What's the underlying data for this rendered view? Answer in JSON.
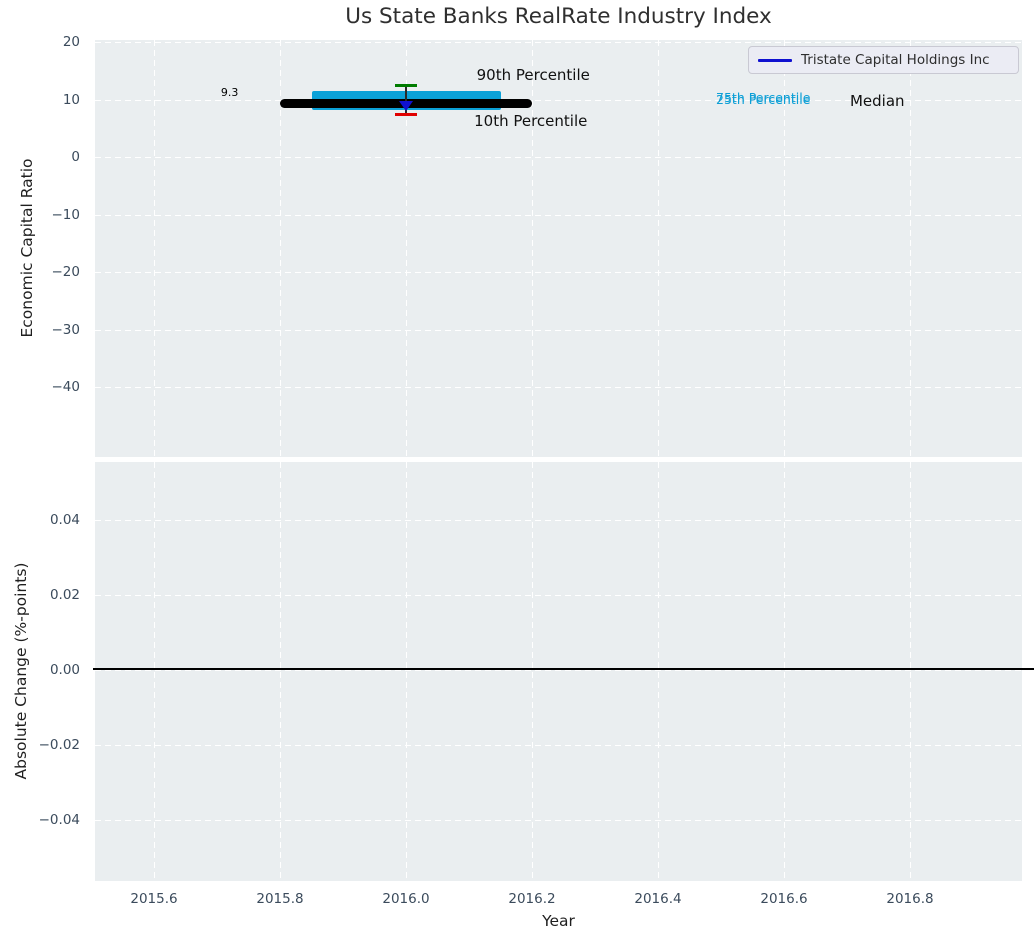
{
  "title": "Us State Banks RealRate Industry Index",
  "axis_labels": {
    "top_y": "Economic Capital Ratio",
    "bottom_y": "Absolute Change (%-points)",
    "x": "Year"
  },
  "legend": {
    "label": "Tristate Capital Holdings Inc",
    "line_color": "#0f10d0"
  },
  "colors": {
    "axes_bg": "#eaeef0",
    "grid": "#ffffff",
    "tick_text": "#3b4b5c",
    "median_line": "#000000",
    "iqr_band": "#0ba1d8",
    "p90_cap": "#007c00",
    "p10_cap": "#e00000",
    "company_marker": "#0f10d0",
    "percentile_label": "#0d9fd6",
    "zero_line": "#000000"
  },
  "chart_data": [
    {
      "type": "line",
      "title": "Us State Banks RealRate Industry Index",
      "xlabel": "Year",
      "ylabel": "Economic Capital Ratio",
      "xlim": [
        2015.506,
        2016.978
      ],
      "ylim": [
        -52.1,
        20.4
      ],
      "xticks": [
        2015.6,
        2015.8,
        2016.0,
        2016.2,
        2016.4,
        2016.6,
        2016.8
      ],
      "yticks": [
        20,
        10,
        0,
        -10,
        -20,
        -30,
        -40
      ],
      "grid": true,
      "grid_style": "dashed",
      "legend_entries": [
        "Tristate Capital Holdings Inc"
      ],
      "legend_position": "upper right",
      "series": [
        {
          "name": "Tristate Capital Holdings Inc",
          "x": [
            2016.0
          ],
          "y": [
            8.9
          ],
          "marker": "triangle-down",
          "color": "#0f10d0"
        }
      ],
      "industry_percentiles": {
        "x": 2016.0,
        "median": 9.3,
        "median_x_span": [
          2015.8,
          2016.2
        ],
        "p25": 8.1,
        "p75": 11.5,
        "band_x_span": [
          2015.85,
          2016.15
        ],
        "p10": 7.4,
        "p90": 12.3
      },
      "annotations": [
        {
          "text": "9.3",
          "x": 2015.72,
          "y": 11.1,
          "color": "#000000",
          "size": 11
        },
        {
          "text": "90th Percentile",
          "x": 2016.202,
          "y": 14.3,
          "color": "#111111",
          "size": 15
        },
        {
          "text": "10th Percentile",
          "x": 2016.198,
          "y": 6.3,
          "color": "#111111",
          "size": 15
        },
        {
          "text": "75th Percentile",
          "x": 2016.567,
          "y": 10.3,
          "color": "#0d9fd6",
          "size": 12.5
        },
        {
          "text": "25th Percentile",
          "x": 2016.567,
          "y": 9.9,
          "color": "#0d9fd6",
          "size": 12.5
        },
        {
          "text": "Median",
          "x": 2016.748,
          "y": 9.7,
          "color": "#111111",
          "size": 15
        }
      ]
    },
    {
      "type": "line",
      "title": "",
      "xlabel": "Year",
      "ylabel": "Absolute Change (%-points)",
      "xlim": [
        2015.506,
        2016.978
      ],
      "ylim": [
        -0.0563,
        0.0555
      ],
      "xticks": [
        2015.6,
        2015.8,
        2016.0,
        2016.2,
        2016.4,
        2016.6,
        2016.8
      ],
      "yticks": [
        0.04,
        0.02,
        0.0,
        -0.02,
        -0.04
      ],
      "grid": true,
      "grid_style": "dashed",
      "zero_line": 0.0,
      "series": []
    }
  ]
}
